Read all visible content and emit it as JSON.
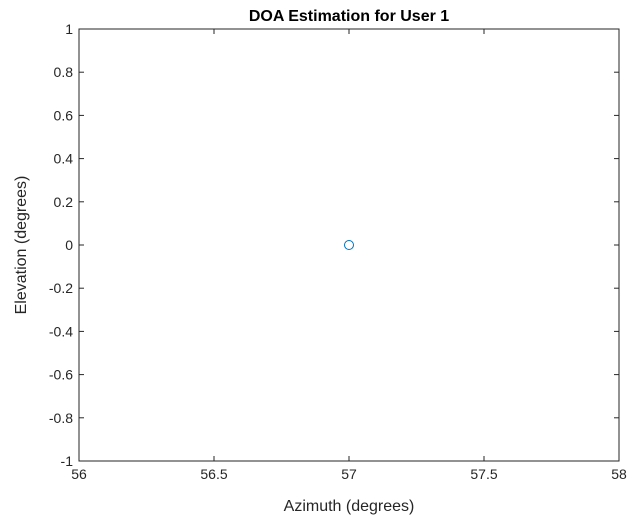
{
  "chart_data": {
    "type": "scatter",
    "title": "DOA Estimation for User 1",
    "xlabel": "Azimuth (degrees)",
    "ylabel": "Elevation (degrees)",
    "xlim": [
      56,
      58
    ],
    "ylim": [
      -1,
      1
    ],
    "xticks": [
      56,
      56.5,
      57,
      57.5,
      58
    ],
    "xtick_labels": [
      "56",
      "56.5",
      "57",
      "57.5",
      "58"
    ],
    "yticks": [
      -1,
      -0.8,
      -0.6,
      -0.4,
      -0.2,
      0,
      0.2,
      0.4,
      0.6,
      0.8,
      1
    ],
    "ytick_labels": [
      "-1",
      "-0.8",
      "-0.6",
      "-0.4",
      "-0.2",
      "0",
      "0.2",
      "0.4",
      "0.6",
      "0.8",
      "1"
    ],
    "grid": false,
    "marker": "circle-open",
    "series": [
      {
        "x": [
          57
        ],
        "y": [
          0
        ],
        "color": "#0072BD"
      }
    ]
  }
}
